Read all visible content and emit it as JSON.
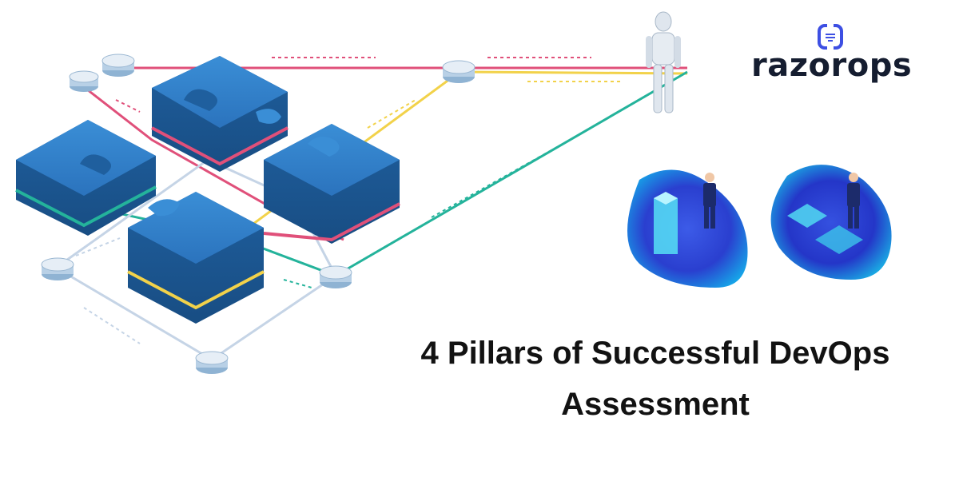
{
  "brand": {
    "name": "razorops",
    "logo_icon": "razorops-logo-icon",
    "color": "#151d30",
    "accent": "#3d4fe3"
  },
  "title": {
    "line1": "4 Pillars of Successful DevOps",
    "line2": "Assessment"
  },
  "illustration": {
    "puzzle_color": "#2f7fc9",
    "line_colors": [
      "#e0507a",
      "#f2d24a",
      "#24b39b",
      "#c5d4e6"
    ]
  }
}
